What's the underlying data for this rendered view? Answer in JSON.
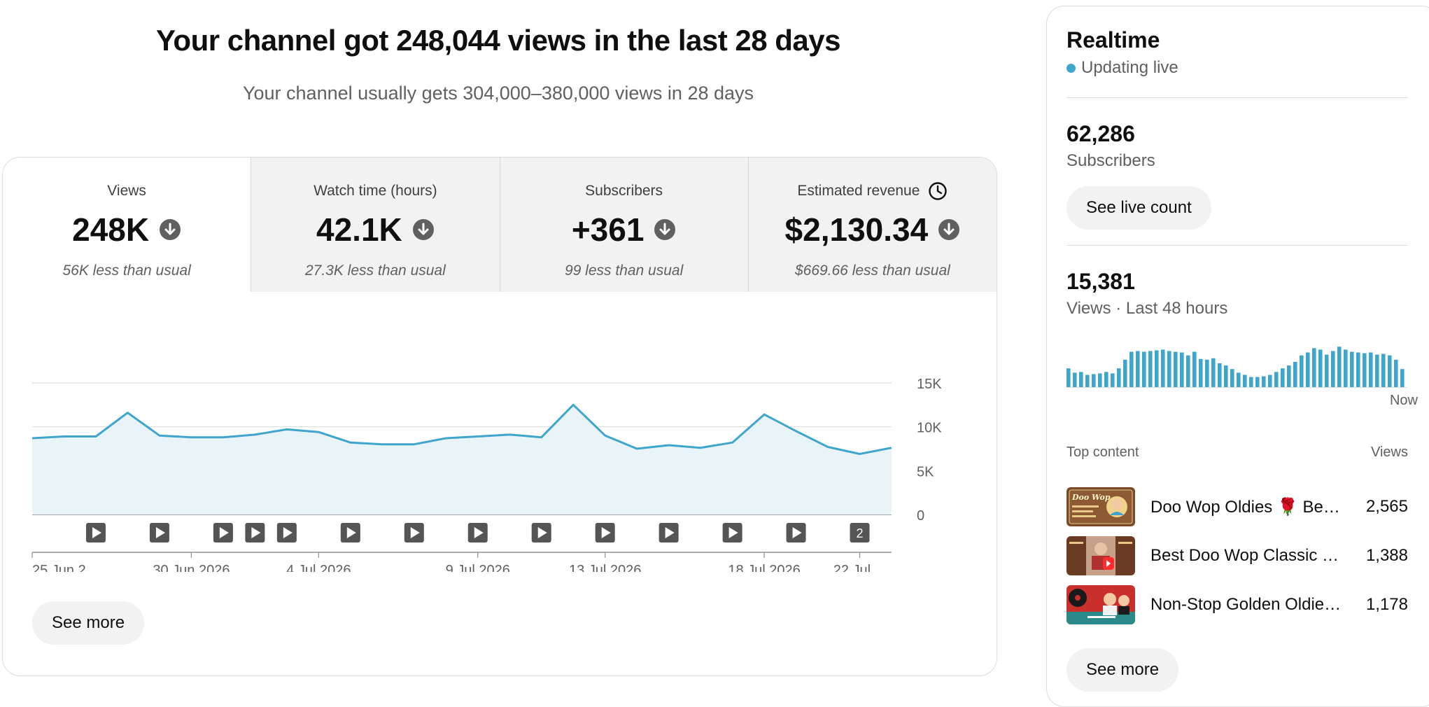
{
  "headline": "Your channel got 248,044 views in the last 28 days",
  "subheadline": "Your channel usually gets 304,000–380,000 views in 28 days",
  "colors": {
    "accent": "#3ea6cc",
    "area_fill": "#e8f4f7",
    "tab_inactive": "#f2f2f2",
    "muted_text": "#606060"
  },
  "metric_tabs": [
    {
      "label": "Views",
      "value": "248K",
      "note": "56K less than usual",
      "trend_icon": "arrow-down-circle-icon",
      "selected": true
    },
    {
      "label": "Watch time (hours)",
      "value": "42.1K",
      "note": "27.3K less than usual",
      "trend_icon": "arrow-down-circle-icon",
      "selected": false
    },
    {
      "label": "Subscribers",
      "value": "+361",
      "note": "99 less than usual",
      "trend_icon": "arrow-down-circle-icon",
      "selected": false
    },
    {
      "label": "Estimated revenue",
      "value": "$2,130.34",
      "note": "$669.66 less than usual",
      "trend_icon": "arrow-down-circle-icon",
      "label_icon": "clock-icon",
      "selected": false
    }
  ],
  "chart_data": {
    "type": "area",
    "x_start": "25 Jun 2026",
    "values": [
      8700,
      8900,
      8900,
      11600,
      9000,
      8800,
      8800,
      9100,
      9700,
      9400,
      8200,
      8000,
      8000,
      8700,
      8900,
      9100,
      8800,
      12500,
      9000,
      7500,
      7900,
      7600,
      8200,
      11400,
      9500,
      7700,
      6900,
      7600
    ],
    "yticks": [
      "15K",
      "10K",
      "5K",
      "0"
    ],
    "ytick_values": [
      15000,
      10000,
      5000,
      0
    ],
    "ylim": [
      0,
      15000
    ],
    "xtick_labels": [
      {
        "label": "25 Jun 2...",
        "day_index": 0
      },
      {
        "label": "30 Jun 2026",
        "day_index": 5
      },
      {
        "label": "4 Jul 2026",
        "day_index": 9
      },
      {
        "label": "9 Jul 2026",
        "day_index": 14
      },
      {
        "label": "13 Jul 2026",
        "day_index": 18
      },
      {
        "label": "18 Jul 2026",
        "day_index": 23
      },
      {
        "label": "22 Jul ...",
        "day_index": 26
      }
    ],
    "upload_markers": [
      {
        "day_index": 2,
        "label": ""
      },
      {
        "day_index": 4,
        "label": ""
      },
      {
        "day_index": 6,
        "label": ""
      },
      {
        "day_index": 7,
        "label": ""
      },
      {
        "day_index": 8,
        "label": ""
      },
      {
        "day_index": 10,
        "label": ""
      },
      {
        "day_index": 12,
        "label": ""
      },
      {
        "day_index": 14,
        "label": ""
      },
      {
        "day_index": 16,
        "label": ""
      },
      {
        "day_index": 18,
        "label": ""
      },
      {
        "day_index": 20,
        "label": ""
      },
      {
        "day_index": 22,
        "label": ""
      },
      {
        "day_index": 24,
        "label": ""
      },
      {
        "day_index": 26,
        "label": "2"
      }
    ],
    "grid": true
  },
  "main_see_more_label": "See more",
  "realtime": {
    "title": "Realtime",
    "status": "Updating live",
    "subscribers_value": "62,286",
    "subscribers_label": "Subscribers",
    "see_live_count_label": "See live count",
    "views_value": "15,381",
    "views_label": "Views · Last 48 hours",
    "now_label": "Now",
    "hourly_views": [
      260,
      200,
      210,
      170,
      180,
      190,
      210,
      190,
      260,
      380,
      490,
      500,
      490,
      500,
      510,
      520,
      500,
      490,
      480,
      440,
      490,
      390,
      380,
      400,
      330,
      300,
      250,
      200,
      170,
      140,
      140,
      150,
      170,
      210,
      260,
      300,
      350,
      440,
      480,
      540,
      520,
      450,
      500,
      560,
      520,
      490,
      480,
      470,
      480,
      450,
      460,
      440,
      380,
      250
    ]
  },
  "top_content": {
    "header_label": "Top content",
    "header_metric": "Views",
    "items": [
      {
        "title": "Doo Wop Oldies 🌹 Best Doo Wop Songs",
        "views": "2,565",
        "thumb_text": "Doo Wop"
      },
      {
        "title": "Best Doo Wop Classic Hits",
        "views": "1,388",
        "thumb_text": ""
      },
      {
        "title": "Non-Stop Golden Oldies Hits",
        "views": "1,178",
        "thumb_text": ""
      }
    ],
    "see_more_label": "See more"
  }
}
